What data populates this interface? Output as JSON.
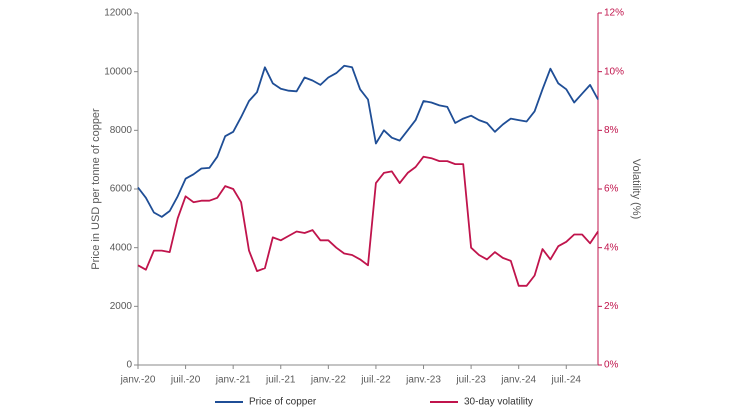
{
  "chart_data": {
    "type": "line",
    "y_label": "Price in USD per tonne of copper",
    "y2_label": "Volatility (%)",
    "categories": [
      "janv.-20",
      null,
      null,
      null,
      null,
      null,
      "juil.-20",
      null,
      null,
      null,
      null,
      null,
      "janv.-21",
      null,
      null,
      null,
      null,
      null,
      "juil.-21",
      null,
      null,
      null,
      null,
      null,
      "janv.-22",
      null,
      null,
      null,
      null,
      null,
      "juil.-22",
      null,
      null,
      null,
      null,
      null,
      "janv.-23",
      null,
      null,
      null,
      null,
      null,
      "juil.-23",
      null,
      null,
      null,
      null,
      null,
      "janv.-24",
      null,
      null,
      null,
      null,
      null,
      "juil.-24",
      null,
      null,
      null,
      null
    ],
    "series": [
      {
        "name": "Price of copper",
        "color": "#1f4e96",
        "values": [
          6050,
          5700,
          5200,
          5050,
          5250,
          5750,
          6350,
          6500,
          6700,
          6720,
          7100,
          7800,
          7950,
          8450,
          9000,
          9300,
          10150,
          9600,
          9420,
          9350,
          9330,
          9800,
          9700,
          9550,
          9800,
          9950,
          10200,
          10150,
          9400,
          9050,
          7550,
          8000,
          7750,
          7650,
          8000,
          8350,
          9000,
          8950,
          8850,
          8800,
          8250,
          8400,
          8500,
          8350,
          8250,
          7950,
          8200,
          8400,
          8350,
          8300,
          8650,
          9400,
          10100,
          9600,
          9400,
          8950,
          9250,
          9550,
          9050
        ]
      },
      {
        "name": "30-day volatility",
        "color": "#c0144c",
        "axis": "y2",
        "values": [
          3.4,
          3.25,
          3.9,
          3.9,
          3.85,
          5.0,
          5.75,
          5.55,
          5.6,
          5.6,
          5.7,
          6.1,
          6.0,
          5.55,
          3.9,
          3.2,
          3.3,
          4.35,
          4.25,
          4.4,
          4.55,
          4.5,
          4.6,
          4.25,
          4.25,
          4.0,
          3.8,
          3.75,
          3.6,
          3.4,
          6.2,
          6.55,
          6.6,
          6.2,
          6.55,
          6.75,
          7.1,
          7.05,
          6.95,
          6.95,
          6.85,
          6.85,
          4.0,
          3.75,
          3.6,
          3.85,
          3.65,
          3.55,
          2.7,
          2.7,
          3.05,
          3.95,
          3.6,
          4.05,
          4.2,
          4.45,
          4.45,
          4.15,
          4.55
        ]
      }
    ],
    "ylim": [
      0,
      12000
    ],
    "yticks": [
      0,
      2000,
      4000,
      6000,
      8000,
      10000,
      12000
    ],
    "y2lim": [
      0,
      12
    ],
    "y2ticks": [
      {
        "value": 0,
        "label": "0%"
      },
      {
        "value": 2,
        "label": "2%"
      },
      {
        "value": 4,
        "label": "4%"
      },
      {
        "value": 6,
        "label": "6%"
      },
      {
        "value": 8,
        "label": "8%"
      },
      {
        "value": 10,
        "label": "10%"
      },
      {
        "value": 12,
        "label": "12%"
      }
    ],
    "legend": "bottom"
  }
}
